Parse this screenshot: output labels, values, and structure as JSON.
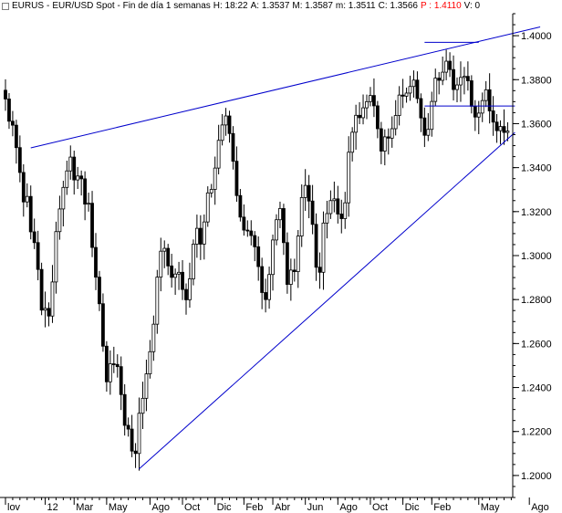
{
  "header": {
    "symbol": "EURUS",
    "title": "EUR/USD Spot - Fin de día 1 semanas",
    "time": "H: 18:22",
    "ask": "A: 1.3537",
    "mid": "M: 1.3587",
    "min": "m: 1.3511",
    "close": "C: 1.3566",
    "p": "P : 1.4110",
    "v": "V: 0"
  },
  "colors": {
    "candle": "#000000",
    "trendline": "#0000cc",
    "grid": "#000000",
    "p_label": "#ff0000"
  },
  "chart_data": {
    "type": "candlestick",
    "title": "EUR/USD Spot - Fin de día 1 semanas",
    "ylim": [
      1.19,
      1.41
    ],
    "y_ticks": [
      "1.2000",
      "1.2200",
      "1.2400",
      "1.2600",
      "1.2800",
      "1.3000",
      "1.3200",
      "1.3400",
      "1.3600",
      "1.3800",
      "1.4000"
    ],
    "x_ticks": [
      "lov",
      "12",
      "Mar",
      "May",
      "Ago",
      "Oct",
      "Dic",
      "Feb",
      "Abr",
      "Jun",
      "Ago",
      "Oct",
      "Dic",
      "Feb",
      "May",
      "Ago"
    ],
    "x_tick_weeks": [
      0,
      11,
      19,
      28,
      40,
      49,
      58,
      66,
      74,
      83,
      92,
      101,
      110,
      118,
      131,
      145
    ],
    "weeks": 140,
    "close": [
      1.3712,
      1.3611,
      1.3593,
      1.3491,
      1.3378,
      1.3244,
      1.3269,
      1.3108,
      1.3059,
      1.2937,
      1.2752,
      1.276,
      1.2725,
      1.288,
      1.3109,
      1.3212,
      1.331,
      1.3385,
      1.3448,
      1.3344,
      1.3362,
      1.3349,
      1.3234,
      1.3238,
      1.3037,
      1.2902,
      1.2781,
      1.2588,
      1.2426,
      1.2508,
      1.2505,
      1.2495,
      1.2368,
      1.2228,
      1.2211,
      1.2111,
      1.21,
      1.2283,
      1.2351,
      1.2462,
      1.2563,
      1.2688,
      1.2902,
      1.302,
      1.3033,
      1.2953,
      1.2901,
      1.2916,
      1.2924,
      1.2846,
      1.2799,
      1.2894,
      1.3052,
      1.3124,
      1.3052,
      1.3153,
      1.3285,
      1.3301,
      1.3398,
      1.3524,
      1.3594,
      1.3635,
      1.3555,
      1.3429,
      1.3273,
      1.3175,
      1.3116,
      1.3112,
      1.3091,
      1.304,
      1.295,
      1.2832,
      1.28,
      1.2914,
      1.3071,
      1.3163,
      1.3214,
      1.3059,
      1.2869,
      1.2934,
      1.2927,
      1.3089,
      1.3264,
      1.3319,
      1.3248,
      1.3142,
      1.2947,
      1.2924,
      1.3148,
      1.3191,
      1.325,
      1.3258,
      1.3189,
      1.3168,
      1.324,
      1.347,
      1.3561,
      1.3638,
      1.3627,
      1.3672,
      1.37,
      1.3728,
      1.3681,
      1.3577,
      1.3475,
      1.354,
      1.3534,
      1.3577,
      1.3637,
      1.373,
      1.3725,
      1.3739,
      1.3769,
      1.3798,
      1.3714,
      1.3626,
      1.3547,
      1.3574,
      1.3701,
      1.3807,
      1.3797,
      1.3834,
      1.3884,
      1.3846,
      1.3755,
      1.3776,
      1.381,
      1.3815,
      1.3795,
      1.3679,
      1.363,
      1.3648,
      1.3705,
      1.3754,
      1.3658,
      1.3607,
      1.3568,
      1.3587,
      1.356,
      1.3566
    ],
    "trendlines": [
      {
        "name": "upper",
        "from": [
          7,
          1.349
        ],
        "to": [
          148,
          1.404
        ]
      },
      {
        "name": "lower",
        "from": [
          37,
          1.203
        ],
        "to": [
          141,
          1.356
        ]
      },
      {
        "name": "top",
        "from": [
          116,
          1.397
        ],
        "to": [
          131,
          1.397
        ]
      },
      {
        "name": "neck",
        "from": [
          116,
          1.368
        ],
        "to": [
          141,
          1.368
        ]
      }
    ]
  }
}
